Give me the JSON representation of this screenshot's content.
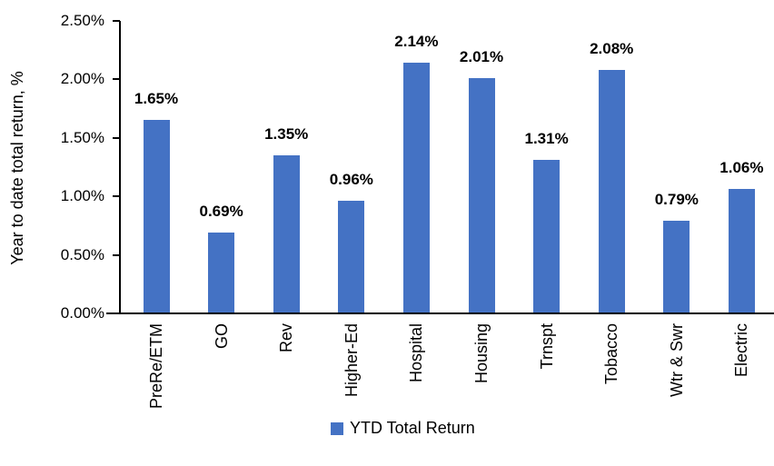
{
  "chart_data": {
    "type": "bar",
    "title": "",
    "categories": [
      "PreRe/ETM",
      "GO",
      "Rev",
      "Higher-Ed",
      "Hospital",
      "Housing",
      "Trnspt",
      "Tobacco",
      "Wtr & Swr",
      "Electric"
    ],
    "values": [
      1.65,
      0.69,
      1.35,
      0.96,
      2.14,
      2.01,
      1.31,
      2.08,
      0.79,
      1.06
    ],
    "data_labels": [
      "1.65%",
      "0.69%",
      "1.35%",
      "0.96%",
      "2.14%",
      "2.01%",
      "1.31%",
      "2.08%",
      "0.79%",
      "1.06%"
    ],
    "xlabel": "",
    "ylabel": "Year to date total return, %",
    "ylim": [
      0,
      2.5
    ],
    "yticks": [
      0,
      0.5,
      1.0,
      1.5,
      2.0,
      2.5
    ],
    "ytick_labels": [
      "0.00%",
      "0.50%",
      "1.00%",
      "1.50%",
      "2.00%",
      "2.50%"
    ],
    "grid": false,
    "legend": {
      "position": "bottom",
      "entries": [
        {
          "label": "YTD Total Return",
          "color": "#4472C4"
        }
      ]
    },
    "bar_color": "#4472C4",
    "axis_color": "#000000",
    "text_color": "#000000"
  }
}
